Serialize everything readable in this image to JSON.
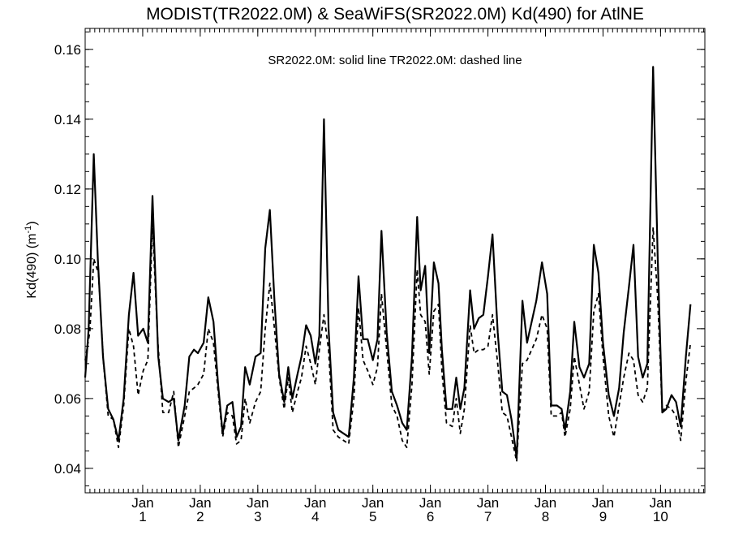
{
  "chart_data": {
    "type": "line",
    "title": "MODIST(TR2022.0M) & SeaWiFS(SR2022.0M)  Kd(490) for AtlNE",
    "subtitle": "SR2022.0M: solid line   TR2022.0M: dashed line",
    "xlabel": "",
    "ylabel": "Kd(490) (m",
    "ylabel_superscript": "-1",
    "ylabel_close": ")",
    "ylim": [
      0.033,
      0.166
    ],
    "xlim": [
      0,
      10.77
    ],
    "yticks": [
      {
        "value": 0.04,
        "label": "0.04"
      },
      {
        "value": 0.06,
        "label": "0.06"
      },
      {
        "value": 0.08,
        "label": "0.08"
      },
      {
        "value": 0.1,
        "label": "0.10"
      },
      {
        "value": 0.12,
        "label": "0.12"
      },
      {
        "value": 0.14,
        "label": "0.14"
      },
      {
        "value": 0.16,
        "label": "0.16"
      }
    ],
    "xticks": [
      {
        "value": 1,
        "month": "Jan",
        "year": "1"
      },
      {
        "value": 2,
        "month": "Jan",
        "year": "2"
      },
      {
        "value": 3,
        "month": "Jan",
        "year": "3"
      },
      {
        "value": 4,
        "month": "Jan",
        "year": "4"
      },
      {
        "value": 5,
        "month": "Jan",
        "year": "5"
      },
      {
        "value": 6,
        "month": "Jan",
        "year": "6"
      },
      {
        "value": 7,
        "month": "Jan",
        "year": "7"
      },
      {
        "value": 8,
        "month": "Jan",
        "year": "8"
      },
      {
        "value": 9,
        "month": "Jan",
        "year": "9"
      },
      {
        "value": 10,
        "month": "Jan",
        "year": "10"
      }
    ],
    "x_minor_per_year": 12,
    "y_minor_step": 0.005,
    "grid": false,
    "series": [
      {
        "name": "SR2022.0M",
        "style": "solid",
        "points": [
          [
            0.0,
            0.066
          ],
          [
            0.06,
            0.08
          ],
          [
            0.15,
            0.13
          ],
          [
            0.22,
            0.1
          ],
          [
            0.31,
            0.072
          ],
          [
            0.4,
            0.057
          ],
          [
            0.49,
            0.054
          ],
          [
            0.58,
            0.048
          ],
          [
            0.67,
            0.06
          ],
          [
            0.76,
            0.084
          ],
          [
            0.84,
            0.096
          ],
          [
            0.92,
            0.078
          ],
          [
            1.01,
            0.08
          ],
          [
            1.09,
            0.076
          ],
          [
            1.17,
            0.118
          ],
          [
            1.27,
            0.072
          ],
          [
            1.35,
            0.06
          ],
          [
            1.45,
            0.059
          ],
          [
            1.54,
            0.06
          ],
          [
            1.62,
            0.048
          ],
          [
            1.73,
            0.058
          ],
          [
            1.81,
            0.072
          ],
          [
            1.89,
            0.074
          ],
          [
            1.96,
            0.073
          ],
          [
            2.06,
            0.076
          ],
          [
            2.14,
            0.089
          ],
          [
            2.23,
            0.082
          ],
          [
            2.31,
            0.064
          ],
          [
            2.39,
            0.05
          ],
          [
            2.47,
            0.058
          ],
          [
            2.56,
            0.059
          ],
          [
            2.63,
            0.049
          ],
          [
            2.71,
            0.052
          ],
          [
            2.78,
            0.069
          ],
          [
            2.86,
            0.064
          ],
          [
            2.96,
            0.072
          ],
          [
            3.05,
            0.073
          ],
          [
            3.13,
            0.103
          ],
          [
            3.21,
            0.114
          ],
          [
            3.29,
            0.088
          ],
          [
            3.37,
            0.067
          ],
          [
            3.46,
            0.059
          ],
          [
            3.53,
            0.069
          ],
          [
            3.6,
            0.06
          ],
          [
            3.69,
            0.067
          ],
          [
            3.76,
            0.072
          ],
          [
            3.84,
            0.081
          ],
          [
            3.92,
            0.078
          ],
          [
            4.0,
            0.07
          ],
          [
            4.07,
            0.078
          ],
          [
            4.15,
            0.14
          ],
          [
            4.23,
            0.08
          ],
          [
            4.31,
            0.056
          ],
          [
            4.4,
            0.051
          ],
          [
            4.49,
            0.05
          ],
          [
            4.58,
            0.049
          ],
          [
            4.67,
            0.066
          ],
          [
            4.75,
            0.095
          ],
          [
            4.83,
            0.077
          ],
          [
            4.91,
            0.077
          ],
          [
            5.0,
            0.071
          ],
          [
            5.08,
            0.077
          ],
          [
            5.15,
            0.108
          ],
          [
            5.24,
            0.079
          ],
          [
            5.33,
            0.062
          ],
          [
            5.42,
            0.058
          ],
          [
            5.51,
            0.053
          ],
          [
            5.59,
            0.051
          ],
          [
            5.68,
            0.072
          ],
          [
            5.77,
            0.112
          ],
          [
            5.83,
            0.091
          ],
          [
            5.91,
            0.098
          ],
          [
            5.98,
            0.073
          ],
          [
            6.06,
            0.099
          ],
          [
            6.14,
            0.093
          ],
          [
            6.2,
            0.074
          ],
          [
            6.28,
            0.057
          ],
          [
            6.38,
            0.057
          ],
          [
            6.45,
            0.066
          ],
          [
            6.52,
            0.057
          ],
          [
            6.59,
            0.063
          ],
          [
            6.69,
            0.091
          ],
          [
            6.76,
            0.08
          ],
          [
            6.84,
            0.083
          ],
          [
            6.92,
            0.084
          ],
          [
            7.0,
            0.095
          ],
          [
            7.08,
            0.107
          ],
          [
            7.17,
            0.079
          ],
          [
            7.25,
            0.062
          ],
          [
            7.33,
            0.061
          ],
          [
            7.41,
            0.054
          ],
          [
            7.5,
            0.043
          ],
          [
            7.6,
            0.088
          ],
          [
            7.68,
            0.076
          ],
          [
            7.76,
            0.082
          ],
          [
            7.84,
            0.088
          ],
          [
            7.94,
            0.099
          ],
          [
            8.03,
            0.09
          ],
          [
            8.1,
            0.058
          ],
          [
            8.2,
            0.058
          ],
          [
            8.28,
            0.057
          ],
          [
            8.34,
            0.051
          ],
          [
            8.43,
            0.062
          ],
          [
            8.5,
            0.082
          ],
          [
            8.59,
            0.069
          ],
          [
            8.67,
            0.066
          ],
          [
            8.76,
            0.07
          ],
          [
            8.84,
            0.104
          ],
          [
            8.92,
            0.096
          ],
          [
            9.0,
            0.076
          ],
          [
            9.1,
            0.061
          ],
          [
            9.19,
            0.055
          ],
          [
            9.28,
            0.063
          ],
          [
            9.36,
            0.079
          ],
          [
            9.45,
            0.092
          ],
          [
            9.53,
            0.104
          ],
          [
            9.61,
            0.072
          ],
          [
            9.69,
            0.066
          ],
          [
            9.77,
            0.07
          ],
          [
            9.87,
            0.155
          ],
          [
            9.95,
            0.101
          ],
          [
            10.03,
            0.056
          ],
          [
            10.1,
            0.057
          ],
          [
            10.19,
            0.061
          ],
          [
            10.27,
            0.059
          ],
          [
            10.35,
            0.052
          ],
          [
            10.44,
            0.072
          ],
          [
            10.52,
            0.087
          ]
        ]
      },
      {
        "name": "TR2022.0M",
        "style": "dashed",
        "points": [
          [
            0.0,
            0.071
          ],
          [
            0.08,
            0.079
          ],
          [
            0.15,
            0.1
          ],
          [
            0.23,
            0.096
          ],
          [
            0.32,
            0.07
          ],
          [
            0.4,
            0.055
          ],
          [
            0.49,
            0.054
          ],
          [
            0.58,
            0.046
          ],
          [
            0.67,
            0.058
          ],
          [
            0.76,
            0.08
          ],
          [
            0.84,
            0.075
          ],
          [
            0.92,
            0.061
          ],
          [
            1.01,
            0.068
          ],
          [
            1.09,
            0.071
          ],
          [
            1.17,
            0.11
          ],
          [
            1.26,
            0.077
          ],
          [
            1.35,
            0.056
          ],
          [
            1.45,
            0.056
          ],
          [
            1.54,
            0.062
          ],
          [
            1.62,
            0.046
          ],
          [
            1.73,
            0.055
          ],
          [
            1.81,
            0.062
          ],
          [
            1.89,
            0.063
          ],
          [
            1.96,
            0.064
          ],
          [
            2.06,
            0.067
          ],
          [
            2.14,
            0.08
          ],
          [
            2.23,
            0.076
          ],
          [
            2.31,
            0.062
          ],
          [
            2.39,
            0.049
          ],
          [
            2.47,
            0.056
          ],
          [
            2.56,
            0.055
          ],
          [
            2.63,
            0.047
          ],
          [
            2.71,
            0.048
          ],
          [
            2.78,
            0.06
          ],
          [
            2.86,
            0.053
          ],
          [
            2.96,
            0.059
          ],
          [
            3.05,
            0.062
          ],
          [
            3.13,
            0.08
          ],
          [
            3.21,
            0.093
          ],
          [
            3.29,
            0.08
          ],
          [
            3.37,
            0.066
          ],
          [
            3.46,
            0.057
          ],
          [
            3.53,
            0.066
          ],
          [
            3.6,
            0.056
          ],
          [
            3.69,
            0.062
          ],
          [
            3.76,
            0.066
          ],
          [
            3.84,
            0.075
          ],
          [
            3.92,
            0.07
          ],
          [
            4.0,
            0.064
          ],
          [
            4.07,
            0.074
          ],
          [
            4.15,
            0.084
          ],
          [
            4.23,
            0.074
          ],
          [
            4.31,
            0.051
          ],
          [
            4.4,
            0.049
          ],
          [
            4.49,
            0.048
          ],
          [
            4.58,
            0.047
          ],
          [
            4.67,
            0.06
          ],
          [
            4.75,
            0.086
          ],
          [
            4.83,
            0.071
          ],
          [
            4.91,
            0.068
          ],
          [
            5.0,
            0.064
          ],
          [
            5.08,
            0.069
          ],
          [
            5.15,
            0.09
          ],
          [
            5.24,
            0.074
          ],
          [
            5.33,
            0.058
          ],
          [
            5.42,
            0.055
          ],
          [
            5.51,
            0.048
          ],
          [
            5.59,
            0.046
          ],
          [
            5.68,
            0.064
          ],
          [
            5.77,
            0.097
          ],
          [
            5.83,
            0.084
          ],
          [
            5.91,
            0.082
          ],
          [
            5.98,
            0.067
          ],
          [
            6.06,
            0.085
          ],
          [
            6.14,
            0.087
          ],
          [
            6.2,
            0.068
          ],
          [
            6.28,
            0.053
          ],
          [
            6.38,
            0.052
          ],
          [
            6.45,
            0.06
          ],
          [
            6.52,
            0.05
          ],
          [
            6.59,
            0.057
          ],
          [
            6.69,
            0.081
          ],
          [
            6.76,
            0.073
          ],
          [
            6.84,
            0.074
          ],
          [
            6.92,
            0.074
          ],
          [
            7.0,
            0.075
          ],
          [
            7.08,
            0.084
          ],
          [
            7.17,
            0.07
          ],
          [
            7.25,
            0.056
          ],
          [
            7.33,
            0.055
          ],
          [
            7.41,
            0.049
          ],
          [
            7.5,
            0.042
          ],
          [
            7.6,
            0.07
          ],
          [
            7.68,
            0.071
          ],
          [
            7.76,
            0.074
          ],
          [
            7.84,
            0.077
          ],
          [
            7.94,
            0.084
          ],
          [
            8.03,
            0.08
          ],
          [
            8.1,
            0.055
          ],
          [
            8.2,
            0.055
          ],
          [
            8.28,
            0.056
          ],
          [
            8.34,
            0.049
          ],
          [
            8.43,
            0.057
          ],
          [
            8.5,
            0.072
          ],
          [
            8.59,
            0.064
          ],
          [
            8.67,
            0.057
          ],
          [
            8.76,
            0.062
          ],
          [
            8.84,
            0.085
          ],
          [
            8.92,
            0.09
          ],
          [
            9.0,
            0.072
          ],
          [
            9.1,
            0.055
          ],
          [
            9.19,
            0.049
          ],
          [
            9.28,
            0.058
          ],
          [
            9.36,
            0.066
          ],
          [
            9.45,
            0.073
          ],
          [
            9.53,
            0.071
          ],
          [
            9.61,
            0.061
          ],
          [
            9.69,
            0.059
          ],
          [
            9.77,
            0.063
          ],
          [
            9.87,
            0.109
          ],
          [
            9.95,
            0.089
          ],
          [
            10.03,
            0.056
          ],
          [
            10.1,
            0.058
          ],
          [
            10.19,
            0.057
          ],
          [
            10.27,
            0.055
          ],
          [
            10.35,
            0.048
          ],
          [
            10.44,
            0.065
          ],
          [
            10.52,
            0.076
          ]
        ]
      }
    ]
  }
}
